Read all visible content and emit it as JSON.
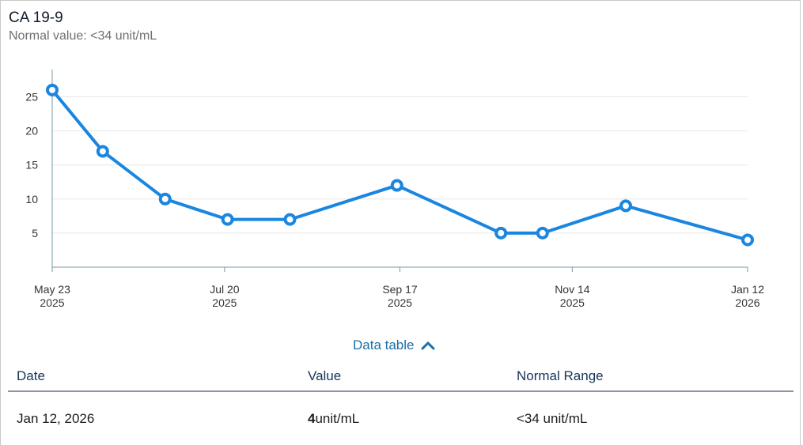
{
  "header": {
    "title": "CA 19-9",
    "subtitle": "Normal value: <34 unit/mL"
  },
  "colors": {
    "line": "#1a86e0",
    "grid": "#e6e6e6",
    "axis": "#7a9aa8"
  },
  "chart_data": {
    "type": "line",
    "title": "",
    "xlabel": "",
    "ylabel": "",
    "ylim": [
      0,
      29
    ],
    "grid": true,
    "y_ticks": [
      5,
      10,
      15,
      20,
      25
    ],
    "x_ticks": [
      {
        "date": "2025-05-23",
        "line1": "May 23",
        "line2": "2025"
      },
      {
        "date": "2025-07-20",
        "line1": "Jul 20",
        "line2": "2025"
      },
      {
        "date": "2025-09-17",
        "line1": "Sep 17",
        "line2": "2025"
      },
      {
        "date": "2025-11-14",
        "line1": "Nov 14",
        "line2": "2025"
      },
      {
        "date": "2026-01-12",
        "line1": "Jan 12",
        "line2": "2026"
      }
    ],
    "x_range": [
      "2025-05-23",
      "2026-01-12"
    ],
    "series": [
      {
        "points": [
          {
            "x": "2025-05-23",
            "y": 26
          },
          {
            "x": "2025-06-09",
            "y": 17
          },
          {
            "x": "2025-06-30",
            "y": 10
          },
          {
            "x": "2025-07-21",
            "y": 7
          },
          {
            "x": "2025-08-11",
            "y": 7
          },
          {
            "x": "2025-09-16",
            "y": 12
          },
          {
            "x": "2025-10-21",
            "y": 5
          },
          {
            "x": "2025-11-04",
            "y": 5
          },
          {
            "x": "2025-12-02",
            "y": 9
          },
          {
            "x": "2026-01-12",
            "y": 4
          }
        ]
      }
    ]
  },
  "data_table": {
    "toggle_label": "Data table",
    "headers": {
      "date": "Date",
      "value": "Value",
      "range": "Normal Range"
    },
    "rows": [
      {
        "date": "Jan 12, 2026",
        "value": "4",
        "unit": "unit/mL",
        "range": "<34 unit/mL"
      }
    ]
  }
}
